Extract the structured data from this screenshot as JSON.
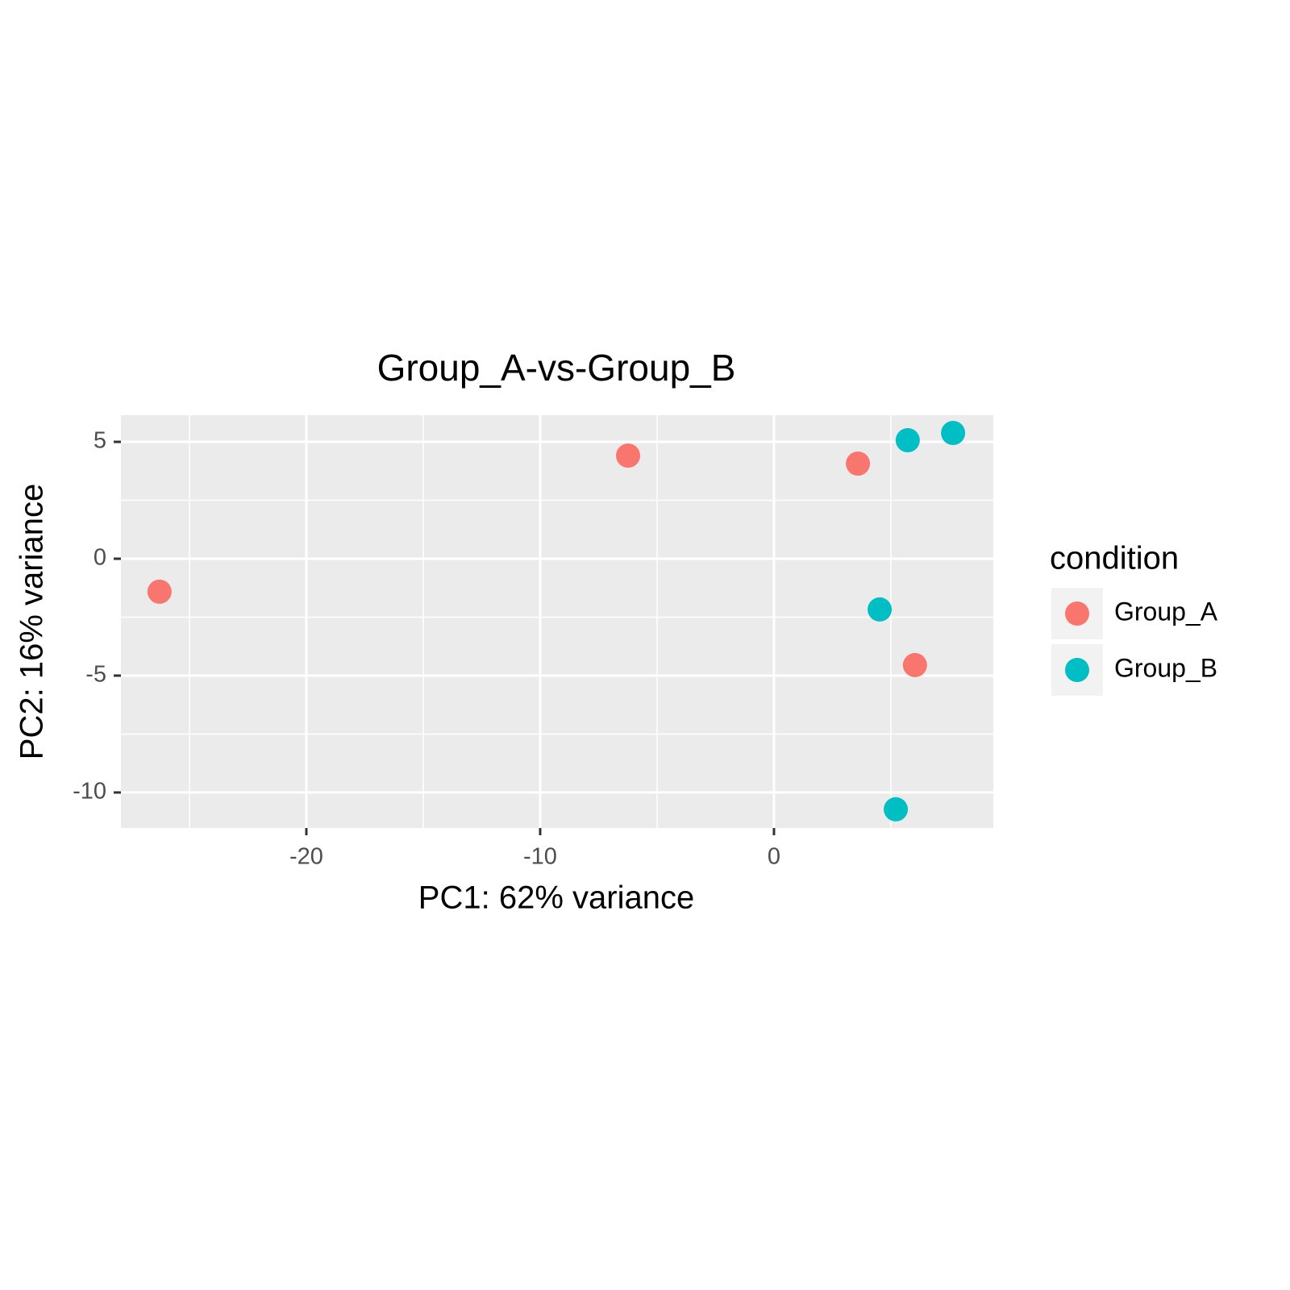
{
  "chart_data": {
    "type": "scatter",
    "title": "Group_A-vs-Group_B",
    "xlabel": "PC1: 62% variance",
    "ylabel": "PC2: 16% variance",
    "legend_title": "condition",
    "legend": "right",
    "grid": true,
    "series": [
      {
        "name": "Group_A",
        "color": "#f8766d",
        "x": [
          -26.28,
          -6.24,
          3.59,
          6.03
        ],
        "values": [
          -1.41,
          4.41,
          4.07,
          -4.55
        ]
      },
      {
        "name": "Group_B",
        "color": "#00bfc4",
        "x": [
          5.72,
          7.66,
          4.52,
          5.21
        ],
        "values": [
          5.07,
          5.38,
          -2.17,
          -10.72
        ]
      }
    ],
    "xlim": [
      -27.93,
      9.38
    ],
    "xticks": [
      -20,
      -10,
      0
    ],
    "ylim": [
      -11.52,
      6.14
    ],
    "yticks": [
      5,
      0,
      -5,
      -10
    ]
  }
}
